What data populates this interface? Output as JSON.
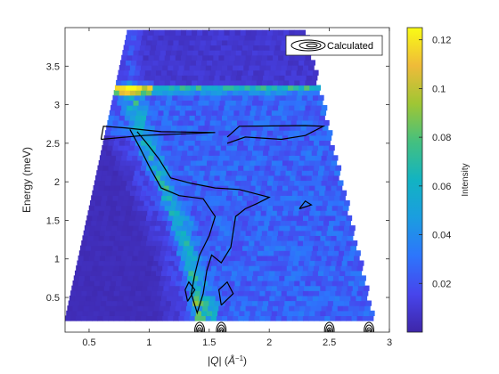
{
  "chart_data": {
    "type": "heatmap",
    "title": "",
    "xlabel": "|Q| (Å^-1)",
    "ylabel": "Energy (meV)",
    "xlim": [
      0.3,
      3.0
    ],
    "ylim": [
      0.05,
      4.0
    ],
    "x_ticks": [
      0.5,
      1,
      1.5,
      2,
      2.5,
      3
    ],
    "x_tick_labels": [
      "0.5",
      "1",
      "1.5",
      "2",
      "2.5",
      "3"
    ],
    "y_ticks": [
      0.5,
      1,
      1.5,
      2,
      2.5,
      3,
      3.5
    ],
    "y_tick_labels": [
      "0.5",
      "1",
      "1.5",
      "2",
      "2.5",
      "3",
      "3.5"
    ],
    "colorbar": {
      "label": "Intensity",
      "range": [
        0,
        0.125
      ],
      "ticks": [
        0.02,
        0.04,
        0.06,
        0.08,
        0.1,
        0.12
      ],
      "tick_labels": [
        "0.02",
        "0.04",
        "0.06",
        "0.08",
        "0.1",
        "0.12"
      ],
      "colormap": "parula"
    },
    "grid": false,
    "legend": {
      "position": "top-right",
      "entries": [
        "Calculated"
      ]
    },
    "coverage": {
      "e_min": 0.2,
      "e_max": 3.95,
      "q_left_at_emin": 0.3,
      "q_left_at_emax": 0.82,
      "q_right_at_emin": 2.85,
      "q_right_at_emax": 2.28
    },
    "features": {
      "flat_band_energy": 3.18,
      "flat_band_peak_intensity": 0.12,
      "dispersive_branch": [
        [
          1.42,
          0.25
        ],
        [
          1.35,
          0.8
        ],
        [
          1.22,
          1.5
        ],
        [
          1.05,
          2.1
        ],
        [
          0.9,
          2.7
        ],
        [
          0.82,
          3.15
        ]
      ],
      "background_intensity": 0.025,
      "no_data_region_intensity": 0.0
    },
    "series": [
      {
        "name": "Calculated",
        "type": "contour",
        "paths": [
          [
            [
              0.6,
              2.55
            ],
            [
              0.62,
              2.72
            ],
            [
              0.8,
              2.7
            ],
            [
              1.1,
              2.65
            ],
            [
              1.55,
              2.64
            ],
            [
              0.95,
              2.6
            ],
            [
              0.6,
              2.55
            ]
          ],
          [
            [
              1.65,
              2.58
            ],
            [
              1.75,
              2.72
            ],
            [
              2.3,
              2.73
            ],
            [
              2.45,
              2.72
            ],
            [
              2.3,
              2.6
            ],
            [
              2.1,
              2.55
            ],
            [
              1.8,
              2.58
            ],
            [
              1.65,
              2.5
            ]
          ],
          [
            [
              0.84,
              2.68
            ],
            [
              0.92,
              2.45
            ],
            [
              1.0,
              2.2
            ],
            [
              1.1,
              1.92
            ],
            [
              1.25,
              1.82
            ],
            [
              1.45,
              1.78
            ],
            [
              1.55,
              1.55
            ],
            [
              1.5,
              1.3
            ],
            [
              1.42,
              1.05
            ],
            [
              1.38,
              0.8
            ],
            [
              1.35,
              0.55
            ],
            [
              1.4,
              0.3
            ],
            [
              1.45,
              0.55
            ],
            [
              1.48,
              0.85
            ],
            [
              1.52,
              1.05
            ],
            [
              1.6,
              0.95
            ],
            [
              1.68,
              1.15
            ],
            [
              1.72,
              1.55
            ],
            [
              1.8,
              1.65
            ],
            [
              1.9,
              1.72
            ],
            [
              2.0,
              1.8
            ],
            [
              1.75,
              1.9
            ],
            [
              1.55,
              1.92
            ],
            [
              1.35,
              1.98
            ],
            [
              1.18,
              2.05
            ],
            [
              1.08,
              2.3
            ],
            [
              0.98,
              2.5
            ],
            [
              0.9,
              2.65
            ]
          ],
          [
            [
              2.25,
              1.65
            ],
            [
              2.35,
              1.7
            ],
            [
              2.3,
              1.75
            ],
            [
              2.25,
              1.65
            ]
          ],
          [
            [
              1.6,
              0.4
            ],
            [
              1.7,
              0.55
            ],
            [
              1.65,
              0.7
            ],
            [
              1.58,
              0.6
            ],
            [
              1.6,
              0.4
            ]
          ],
          [
            [
              1.32,
              0.45
            ],
            [
              1.38,
              0.6
            ],
            [
              1.33,
              0.7
            ],
            [
              1.3,
              0.6
            ],
            [
              1.32,
              0.45
            ]
          ]
        ],
        "bottom_contours": [
          {
            "q": 1.42,
            "label": "peak"
          },
          {
            "q": 1.6,
            "label": "peak"
          },
          {
            "q": 2.5,
            "label": "peak"
          },
          {
            "q": 2.83,
            "label": "peak"
          }
        ]
      }
    ]
  }
}
